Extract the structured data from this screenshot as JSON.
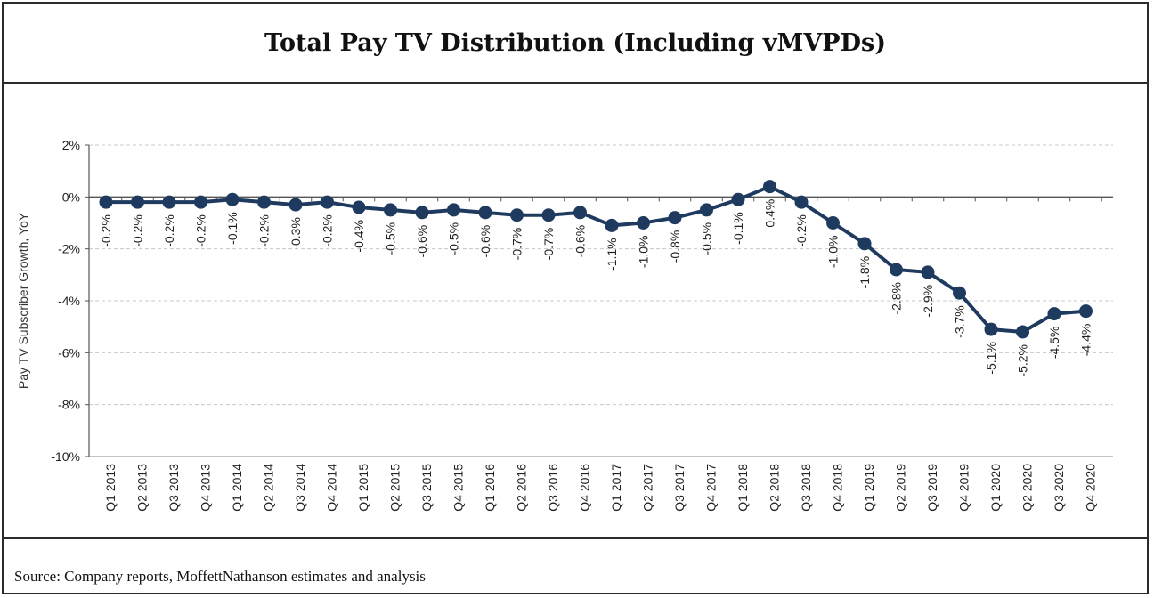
{
  "header": {
    "title": "Total Pay TV Distribution (Including vMVPDs)"
  },
  "footer": {
    "source": "Source: Company reports, MoffettNathanson estimates and analysis"
  },
  "chart_data": {
    "type": "line",
    "title": "Total Pay TV Distribution (Including vMVPDs)",
    "xlabel": "",
    "ylabel": "Pay TV Subscriber Growth, YoY",
    "ylim": [
      -10,
      2
    ],
    "yticks": [
      2,
      0,
      -2,
      -4,
      -6,
      -8,
      -10
    ],
    "ytick_labels": [
      "2%",
      "0%",
      "-2%",
      "-4%",
      "-6%",
      "-8%",
      "-10%"
    ],
    "grid": "horizontal dashed",
    "line_color": "#1f3a5f",
    "categories": [
      "Q1 2013",
      "Q2 2013",
      "Q3 2013",
      "Q4 2013",
      "Q1 2014",
      "Q2 2014",
      "Q3 2014",
      "Q4 2014",
      "Q1 2015",
      "Q2 2015",
      "Q3 2015",
      "Q4 2015",
      "Q1 2016",
      "Q2 2016",
      "Q3 2016",
      "Q4 2016",
      "Q1 2017",
      "Q2 2017",
      "Q3 2017",
      "Q4 2017",
      "Q1 2018",
      "Q2 2018",
      "Q3 2018",
      "Q4 2018",
      "Q1 2019",
      "Q2 2019",
      "Q3 2019",
      "Q4 2019",
      "Q1 2020",
      "Q2 2020",
      "Q3 2020",
      "Q4 2020"
    ],
    "values": [
      -0.2,
      -0.2,
      -0.2,
      -0.2,
      -0.1,
      -0.2,
      -0.3,
      -0.2,
      -0.4,
      -0.5,
      -0.6,
      -0.5,
      -0.6,
      -0.7,
      -0.7,
      -0.6,
      -1.1,
      -1.0,
      -0.8,
      -0.5,
      -0.1,
      0.4,
      -0.2,
      -1.0,
      -1.8,
      -2.8,
      -2.9,
      -3.7,
      -5.1,
      -5.2,
      -4.5,
      -4.4
    ],
    "data_labels": [
      "-0.2%",
      "-0.2%",
      "-0.2%",
      "-0.2%",
      "-0.1%",
      "-0.2%",
      "-0.3%",
      "-0.2%",
      "-0.4%",
      "-0.5%",
      "-0.6%",
      "-0.5%",
      "-0.6%",
      "-0.7%",
      "-0.7%",
      "-0.6%",
      "-1.1%",
      "-1.0%",
      "-0.8%",
      "-0.5%",
      "-0.1%",
      "0.4%",
      "-0.2%",
      "-1.0%",
      "-1.8%",
      "-2.8%",
      "-2.9%",
      "-3.7%",
      "-5.1%",
      "-5.2%",
      "-4.5%",
      "-4.4%"
    ]
  }
}
